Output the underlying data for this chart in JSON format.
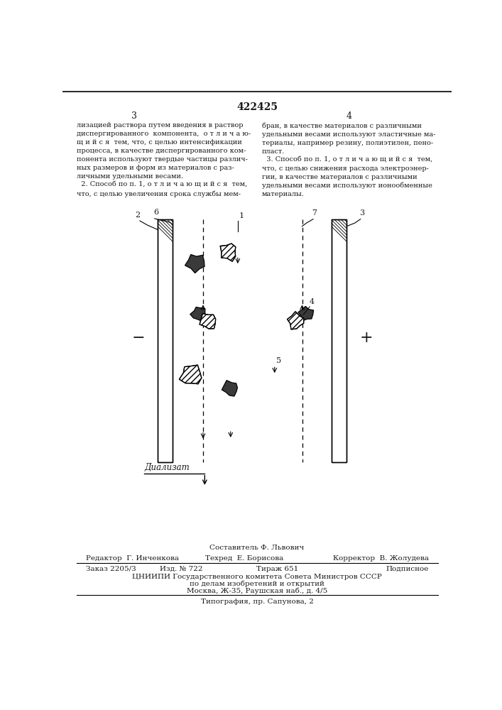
{
  "patent_number": "422425",
  "page_col_left": "3",
  "page_col_right": "4",
  "text_col1": "лизацией раствора путем введения в раствор\nдиспергированного  компонента,  о т л и ч а ю-\nщ и й с я  тем, что, с целью интенсификации\nпроцесса, в качестве диспергированного ком-\nпонента используют твердые частицы различ-\nных размеров и форм из материалов с раз-\nличными удельными весами.\n  2. Способ по п. 1, о т л и ч а ю щ и й с я  тем,\nчто, с целью увеличения срока службы мем-",
  "text_col2": "бран, в качестве материалов с различными\nудельными весами используют эластичные ма-\nтериалы, например резину, полиэтилен, пено-\nпласт.\n  3. Способ по п. 1, о т л и ч а ю щ и й с я  тем,\nчто, с целью снижения расхода электроэнер-\nгии, в качестве материалов с различными\nудельными весами используют ионообменные\nматериалы.",
  "label_sestavitel": "Составитель Ф. Львович",
  "label_redaktor": "Редактор  Г. Инченкова",
  "label_tehred": "Техред  Е. Борисова",
  "label_korrektor": "Корректор  В. Жолудева",
  "label_zakaz": "Заказ 2205/3",
  "label_izd": "Изд. № 722",
  "label_tirazh": "Тираж 651",
  "label_podpisnoe": "Подписное",
  "label_cniipі": "ЦНИИПИ Государственного комитета Совета Министров СССР",
  "label_po_delam": "по делам изобретений и открытий",
  "label_moskva": "Москва, Ж-35, Раушская наб., д. 4/5",
  "label_tipografia": "Типография, пр. Сапунова, 2",
  "bg_color": "#ffffff",
  "text_color": "#1a1a1a",
  "line_color": "#000000"
}
